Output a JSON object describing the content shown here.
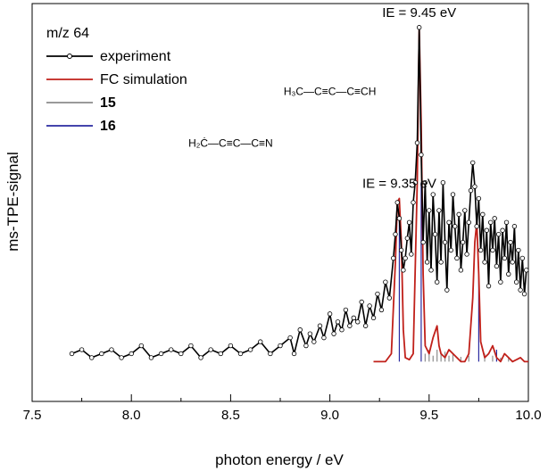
{
  "chart_data": {
    "type": "line",
    "xlabel": "photon energy / eV",
    "ylabel": "ms-TPE-signal",
    "xlim": [
      7.5,
      10.0
    ],
    "ylim": [
      0,
      1.0
    ],
    "xticks": [
      "7.5",
      "8.0",
      "8.5",
      "9.0",
      "9.5",
      "10.0"
    ],
    "legend_position": "top-left",
    "legend_header": "m/z 64",
    "legend": [
      {
        "label": "experiment",
        "bold": false,
        "color": "#000000",
        "marker": true
      },
      {
        "label": "FC simulation",
        "bold": false,
        "color": "#c0201a",
        "marker": false
      },
      {
        "label": "15",
        "bold": true,
        "color": "#8c8c8c",
        "marker": false
      },
      {
        "label": "16",
        "bold": true,
        "color": "#2a2aa0",
        "marker": false
      }
    ],
    "annotations": [
      {
        "text": "IE = 9.45 eV",
        "x": 9.45,
        "y": 0.94
      },
      {
        "text": "IE = 9.35 eV",
        "x": 9.35,
        "y": 0.51
      }
    ],
    "structures": [
      {
        "text": "H₃C—C≡C—C≡CH",
        "x": 9.0,
        "y": 0.77
      },
      {
        "text": "H₂Ċ—C≡C—C≡N",
        "x": 8.5,
        "y": 0.64
      }
    ],
    "series": [
      {
        "name": "experiment",
        "color": "#000000",
        "x": [
          7.7,
          7.75,
          7.8,
          7.85,
          7.9,
          7.95,
          8.0,
          8.05,
          8.1,
          8.15,
          8.2,
          8.25,
          8.3,
          8.35,
          8.4,
          8.45,
          8.5,
          8.55,
          8.6,
          8.65,
          8.7,
          8.75,
          8.8,
          8.82,
          8.85,
          8.88,
          8.9,
          8.92,
          8.95,
          8.97,
          9.0,
          9.02,
          9.04,
          9.06,
          9.08,
          9.1,
          9.12,
          9.14,
          9.16,
          9.18,
          9.2,
          9.22,
          9.24,
          9.26,
          9.28,
          9.3,
          9.32,
          9.33,
          9.34,
          9.35,
          9.36,
          9.37,
          9.38,
          9.39,
          9.4,
          9.41,
          9.42,
          9.43,
          9.44,
          9.45,
          9.46,
          9.47,
          9.48,
          9.49,
          9.5,
          9.51,
          9.52,
          9.53,
          9.54,
          9.55,
          9.56,
          9.57,
          9.58,
          9.59,
          9.6,
          9.61,
          9.62,
          9.63,
          9.64,
          9.65,
          9.66,
          9.67,
          9.68,
          9.69,
          9.7,
          9.71,
          9.72,
          9.73,
          9.74,
          9.75,
          9.76,
          9.77,
          9.78,
          9.79,
          9.8,
          9.81,
          9.82,
          9.83,
          9.84,
          9.85,
          9.86,
          9.87,
          9.88,
          9.89,
          9.9,
          9.91,
          9.92,
          9.93,
          9.94,
          9.95,
          9.96,
          9.97,
          9.98,
          9.99
        ],
        "y": [
          0.12,
          0.13,
          0.11,
          0.12,
          0.13,
          0.11,
          0.12,
          0.14,
          0.11,
          0.12,
          0.13,
          0.12,
          0.14,
          0.11,
          0.13,
          0.12,
          0.14,
          0.12,
          0.13,
          0.15,
          0.12,
          0.14,
          0.16,
          0.12,
          0.18,
          0.14,
          0.17,
          0.15,
          0.19,
          0.16,
          0.22,
          0.17,
          0.2,
          0.18,
          0.23,
          0.19,
          0.21,
          0.2,
          0.25,
          0.19,
          0.24,
          0.21,
          0.27,
          0.23,
          0.3,
          0.26,
          0.36,
          0.42,
          0.5,
          0.46,
          0.38,
          0.33,
          0.36,
          0.41,
          0.45,
          0.37,
          0.5,
          0.55,
          0.65,
          0.94,
          0.62,
          0.4,
          0.55,
          0.35,
          0.48,
          0.33,
          0.52,
          0.42,
          0.3,
          0.48,
          0.35,
          0.55,
          0.4,
          0.28,
          0.45,
          0.38,
          0.52,
          0.44,
          0.36,
          0.47,
          0.33,
          0.4,
          0.48,
          0.37,
          0.45,
          0.53,
          0.6,
          0.54,
          0.44,
          0.51,
          0.38,
          0.47,
          0.35,
          0.43,
          0.29,
          0.45,
          0.38,
          0.46,
          0.34,
          0.42,
          0.3,
          0.43,
          0.36,
          0.45,
          0.32,
          0.4,
          0.35,
          0.44,
          0.3,
          0.38,
          0.28,
          0.36,
          0.27,
          0.33
        ]
      },
      {
        "name": "FC simulation",
        "color": "#c0201a",
        "x": [
          9.22,
          9.28,
          9.31,
          9.33,
          9.34,
          9.35,
          9.36,
          9.37,
          9.38,
          9.4,
          9.42,
          9.44,
          9.45,
          9.46,
          9.47,
          9.48,
          9.5,
          9.52,
          9.54,
          9.55,
          9.56,
          9.58,
          9.6,
          9.62,
          9.64,
          9.66,
          9.68,
          9.7,
          9.72,
          9.73,
          9.74,
          9.75,
          9.76,
          9.78,
          9.8,
          9.82,
          9.84,
          9.86,
          9.88,
          9.9,
          9.92,
          9.94,
          9.96,
          9.98,
          10.0
        ],
        "y": [
          0.1,
          0.1,
          0.12,
          0.35,
          0.5,
          0.51,
          0.4,
          0.18,
          0.11,
          0.105,
          0.12,
          0.55,
          0.94,
          0.7,
          0.32,
          0.14,
          0.12,
          0.16,
          0.19,
          0.14,
          0.12,
          0.11,
          0.13,
          0.12,
          0.11,
          0.1,
          0.1,
          0.12,
          0.26,
          0.4,
          0.45,
          0.32,
          0.15,
          0.11,
          0.12,
          0.14,
          0.11,
          0.1,
          0.12,
          0.11,
          0.1,
          0.105,
          0.11,
          0.1,
          0.1
        ]
      },
      {
        "name": "15",
        "color": "#8c8c8c",
        "x": [
          9.48,
          9.5,
          9.52,
          9.54,
          9.56,
          9.58,
          9.6,
          9.62,
          9.66,
          9.7,
          9.78,
          9.82,
          9.86,
          9.9
        ],
        "y": [
          0.02,
          0.03,
          0.015,
          0.03,
          0.02,
          0.025,
          0.015,
          0.02,
          0.012,
          0.015,
          0.02,
          0.015,
          0.01,
          0.012
        ]
      },
      {
        "name": "16",
        "color": "#2a2aa0",
        "x": [
          9.35,
          9.46,
          9.75,
          9.84
        ],
        "y": [
          0.36,
          0.45,
          0.22,
          0.03
        ]
      }
    ]
  }
}
